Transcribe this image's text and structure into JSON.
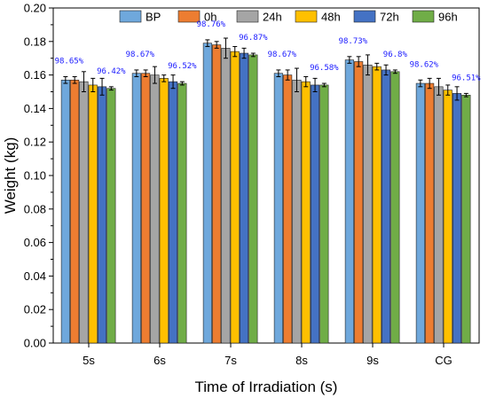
{
  "chart_data": {
    "type": "bar",
    "title": "",
    "xlabel": "Time of Irradiation (s)",
    "ylabel": "Weight (kg)",
    "ylim": [
      0,
      0.2
    ],
    "yticks": [
      "0.00",
      "0.02",
      "0.04",
      "0.06",
      "0.08",
      "0.10",
      "0.12",
      "0.14",
      "0.16",
      "0.18",
      "0.20"
    ],
    "categories": [
      "5s",
      "6s",
      "7s",
      "8s",
      "9s",
      "CG"
    ],
    "legend_placement": "top",
    "series": [
      {
        "name": "BP",
        "color": "#6fa8dc",
        "values": [
          0.157,
          0.161,
          0.179,
          0.161,
          0.169,
          0.155
        ],
        "errors": [
          0.002,
          0.002,
          0.002,
          0.002,
          0.002,
          0.002
        ]
      },
      {
        "name": "0h",
        "color": "#ed7d31",
        "values": [
          0.157,
          0.161,
          0.178,
          0.16,
          0.168,
          0.155
        ],
        "errors": [
          0.002,
          0.002,
          0.002,
          0.003,
          0.003,
          0.003
        ]
      },
      {
        "name": "24h",
        "color": "#a5a5a5",
        "values": [
          0.156,
          0.16,
          0.176,
          0.157,
          0.166,
          0.153
        ],
        "errors": [
          0.006,
          0.005,
          0.006,
          0.007,
          0.006,
          0.005
        ]
      },
      {
        "name": "48h",
        "color": "#ffc000",
        "values": [
          0.154,
          0.158,
          0.174,
          0.156,
          0.165,
          0.151
        ],
        "errors": [
          0.004,
          0.002,
          0.003,
          0.003,
          0.002,
          0.003
        ]
      },
      {
        "name": "72h",
        "color": "#4472c4",
        "values": [
          0.153,
          0.156,
          0.173,
          0.154,
          0.163,
          0.149
        ],
        "errors": [
          0.005,
          0.004,
          0.003,
          0.004,
          0.003,
          0.004
        ]
      },
      {
        "name": "96h",
        "color": "#70ad47",
        "values": [
          0.152,
          0.155,
          0.172,
          0.154,
          0.162,
          0.148
        ],
        "errors": [
          0.001,
          0.001,
          0.001,
          0.001,
          0.001,
          0.001
        ]
      }
    ],
    "annotations": [
      {
        "category": "5s",
        "series": "BP",
        "text": "98.65%"
      },
      {
        "category": "5s",
        "series": "96h",
        "text": "96.42%"
      },
      {
        "category": "6s",
        "series": "BP",
        "text": "98.67%"
      },
      {
        "category": "6s",
        "series": "96h",
        "text": "96.52%"
      },
      {
        "category": "7s",
        "series": "BP",
        "text": "98.76%"
      },
      {
        "category": "7s",
        "series": "96h",
        "text": "96.87%"
      },
      {
        "category": "8s",
        "series": "BP",
        "text": "98.67%"
      },
      {
        "category": "8s",
        "series": "96h",
        "text": "96.58%"
      },
      {
        "category": "9s",
        "series": "BP",
        "text": "98.73%"
      },
      {
        "category": "9s",
        "series": "96h",
        "text": "96.8%"
      },
      {
        "category": "CG",
        "series": "BP",
        "text": "98.62%"
      },
      {
        "category": "CG",
        "series": "96h",
        "text": "96.51%"
      }
    ]
  }
}
